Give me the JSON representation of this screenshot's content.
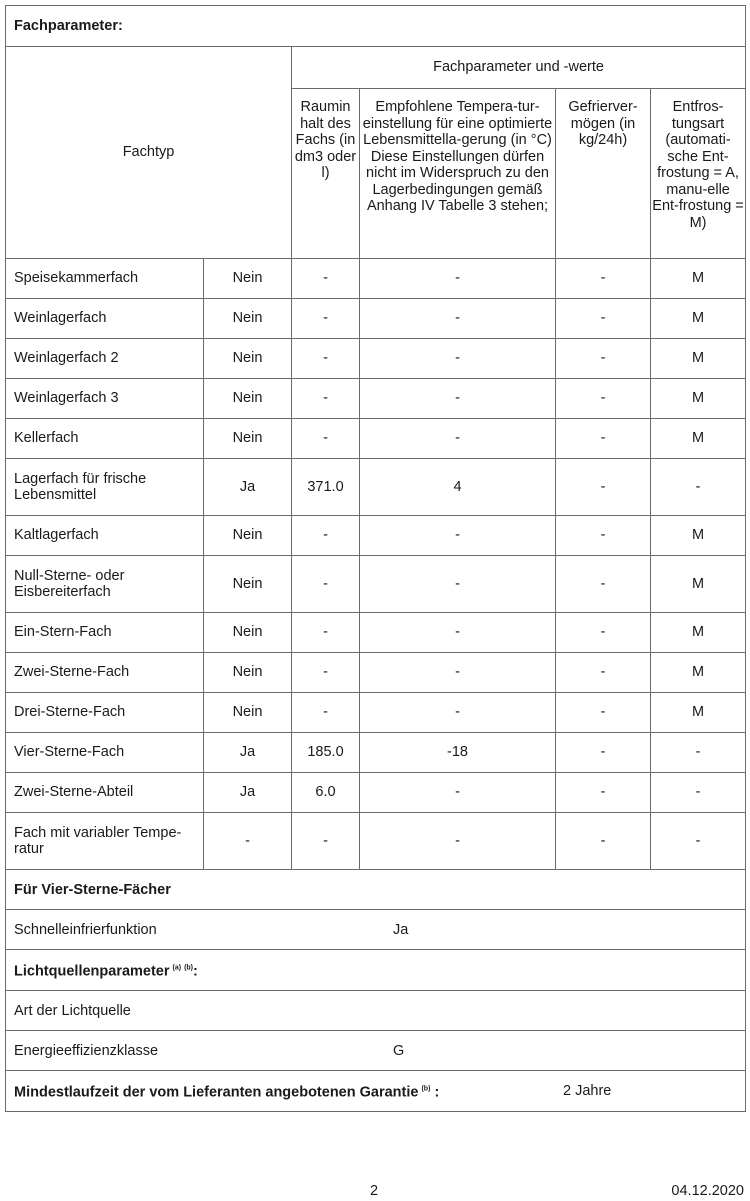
{
  "title": "Fachparameter:",
  "group_header": "Fachparameter und -werte",
  "col_fachtyp": "Fachtyp",
  "col_headers": [
    "Raumin halt des Fachs (in dm3 oder l)",
    "Empfohlene Tempera-tur-einstellung für eine optimierte Lebensmittella-gerung (in °C) Diese Einstellungen dürfen nicht im Widerspruch zu den Lagerbedingungen gemäß Anhang IV Tabelle 3 stehen;",
    "Gefrierver-mögen (in kg/24h)",
    "Entfros-tungsart (automati-sche Ent-frostung = A, manu-elle Ent-frostung = M)"
  ],
  "rows": [
    {
      "cells": [
        "Speisekammerfach",
        "Nein",
        "-",
        "-",
        "-",
        "M"
      ]
    },
    {
      "cells": [
        "Weinlagerfach",
        "Nein",
        "-",
        "-",
        "-",
        "M"
      ]
    },
    {
      "cells": [
        "Weinlagerfach 2",
        "Nein",
        "-",
        "-",
        "-",
        "M"
      ]
    },
    {
      "cells": [
        "Weinlagerfach 3",
        "Nein",
        "-",
        "-",
        "-",
        "M"
      ]
    },
    {
      "cells": [
        "Kellerfach",
        "Nein",
        "-",
        "-",
        "-",
        "M"
      ]
    },
    {
      "cells": [
        "Lagerfach für frische Lebensmittel",
        "Ja",
        "371.0",
        "4",
        "-",
        "-"
      ]
    },
    {
      "cells": [
        "Kaltlagerfach",
        "Nein",
        "-",
        "-",
        "-",
        "M"
      ]
    },
    {
      "cells": [
        "Null-Sterne- oder Eisbereiterfach",
        "Nein",
        "-",
        "-",
        "-",
        "M"
      ]
    },
    {
      "cells": [
        "Ein-Stern-Fach",
        "Nein",
        "-",
        "-",
        "-",
        "M"
      ]
    },
    {
      "cells": [
        "Zwei-Sterne-Fach",
        "Nein",
        "-",
        "-",
        "-",
        "M"
      ]
    },
    {
      "cells": [
        "Drei-Sterne-Fach",
        "Nein",
        "-",
        "-",
        "-",
        "M"
      ]
    },
    {
      "cells": [
        "Vier-Sterne-Fach",
        "Ja",
        "185.0",
        "-18",
        "-",
        "-"
      ]
    },
    {
      "cells": [
        "Zwei-Sterne-Abteil",
        "Ja",
        "6.0",
        "-",
        "-",
        "-"
      ]
    },
    {
      "cells": [
        "Fach mit variabler Tempe-ratur",
        "-",
        "-",
        "-",
        "-",
        "-"
      ]
    }
  ],
  "four_star": {
    "heading": "Für Vier-Sterne-Fächer",
    "fast_freeze_label": "Schnelleinfrierfunktion",
    "fast_freeze_value": "Ja"
  },
  "light": {
    "heading": "Lichtquellenparameter",
    "sup_a": "(a)",
    "sup_b": "(b)",
    "colon": ":",
    "type_label": "Art der Lichtquelle",
    "type_value": "",
    "class_label": "Energieeffizienzklasse",
    "class_value": "G"
  },
  "warranty": {
    "label": "Mindestlaufzeit der vom Lieferanten angebotenen Garantie",
    "sup": "(b)",
    "colon": " :",
    "value": "2 Jahre"
  },
  "footer": {
    "page": "2",
    "date": "04.12.2020"
  }
}
